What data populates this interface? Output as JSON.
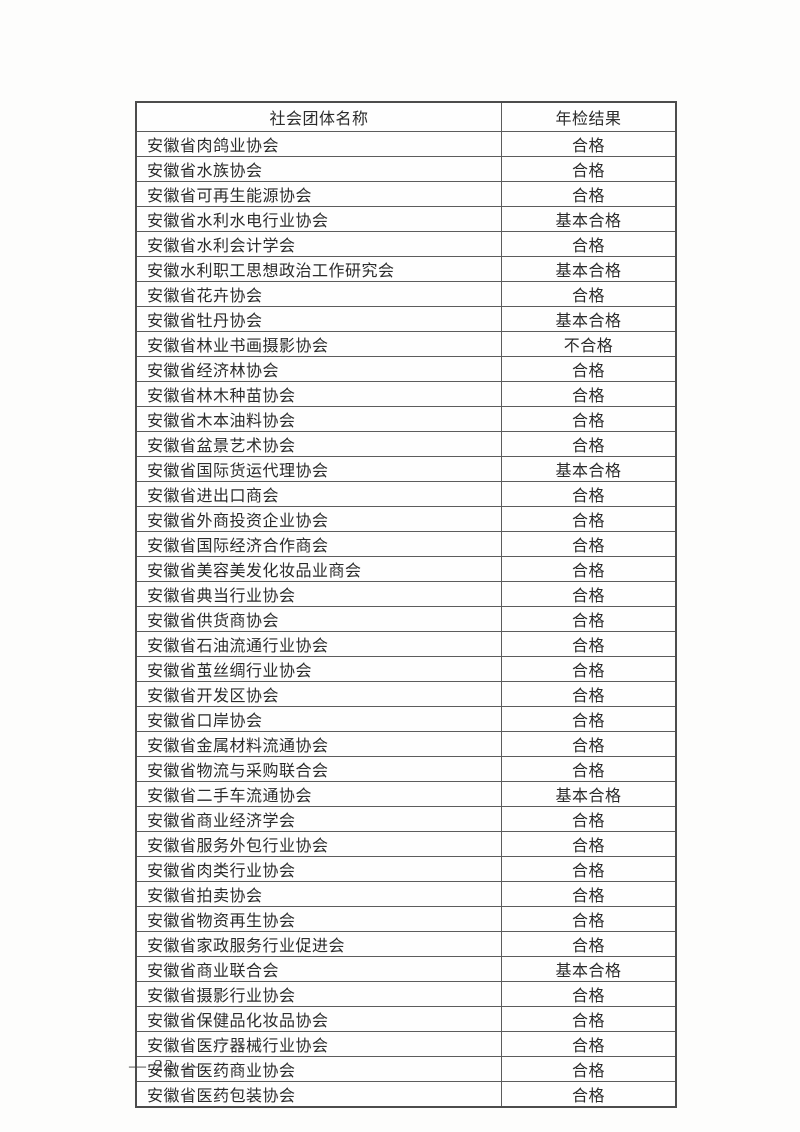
{
  "page": {
    "footer_page_number": "— 22 —"
  },
  "table": {
    "columns": [
      "社会团体名称",
      "年检结果"
    ],
    "rows": [
      {
        "name": "安徽省肉鸽业协会",
        "result": "合格"
      },
      {
        "name": "安徽省水族协会",
        "result": "合格"
      },
      {
        "name": "安徽省可再生能源协会",
        "result": "合格"
      },
      {
        "name": "安徽省水利水电行业协会",
        "result": "基本合格"
      },
      {
        "name": "安徽省水利会计学会",
        "result": "合格"
      },
      {
        "name": "安徽水利职工思想政治工作研究会",
        "result": "基本合格"
      },
      {
        "name": "安徽省花卉协会",
        "result": "合格"
      },
      {
        "name": "安徽省牡丹协会",
        "result": "基本合格"
      },
      {
        "name": "安徽省林业书画摄影协会",
        "result": "不合格"
      },
      {
        "name": "安徽省经济林协会",
        "result": "合格"
      },
      {
        "name": "安徽省林木种苗协会",
        "result": "合格"
      },
      {
        "name": "安徽省木本油料协会",
        "result": "合格"
      },
      {
        "name": "安徽省盆景艺术协会",
        "result": "合格"
      },
      {
        "name": "安徽省国际货运代理协会",
        "result": "基本合格"
      },
      {
        "name": "安徽省进出口商会",
        "result": "合格"
      },
      {
        "name": "安徽省外商投资企业协会",
        "result": "合格"
      },
      {
        "name": "安徽省国际经济合作商会",
        "result": "合格"
      },
      {
        "name": "安徽省美容美发化妆品业商会",
        "result": "合格"
      },
      {
        "name": "安徽省典当行业协会",
        "result": "合格"
      },
      {
        "name": "安徽省供货商协会",
        "result": "合格"
      },
      {
        "name": "安徽省石油流通行业协会",
        "result": "合格"
      },
      {
        "name": "安徽省茧丝绸行业协会",
        "result": "合格"
      },
      {
        "name": "安徽省开发区协会",
        "result": "合格"
      },
      {
        "name": "安徽省口岸协会",
        "result": "合格"
      },
      {
        "name": "安徽省金属材料流通协会",
        "result": "合格"
      },
      {
        "name": "安徽省物流与采购联合会",
        "result": "合格"
      },
      {
        "name": "安徽省二手车流通协会",
        "result": "基本合格"
      },
      {
        "name": "安徽省商业经济学会",
        "result": "合格"
      },
      {
        "name": "安徽省服务外包行业协会",
        "result": "合格"
      },
      {
        "name": "安徽省肉类行业协会",
        "result": "合格"
      },
      {
        "name": "安徽省拍卖协会",
        "result": "合格"
      },
      {
        "name": "安徽省物资再生协会",
        "result": "合格"
      },
      {
        "name": "安徽省家政服务行业促进会",
        "result": "合格"
      },
      {
        "name": "安徽省商业联合会",
        "result": "基本合格"
      },
      {
        "name": "安徽省摄影行业协会",
        "result": "合格"
      },
      {
        "name": "安徽省保健品化妆品协会",
        "result": "合格"
      },
      {
        "name": "安徽省医疗器械行业协会",
        "result": "合格"
      },
      {
        "name": "安徽省医药商业协会",
        "result": "合格"
      },
      {
        "name": "安徽省医药包装协会",
        "result": "合格"
      }
    ]
  }
}
